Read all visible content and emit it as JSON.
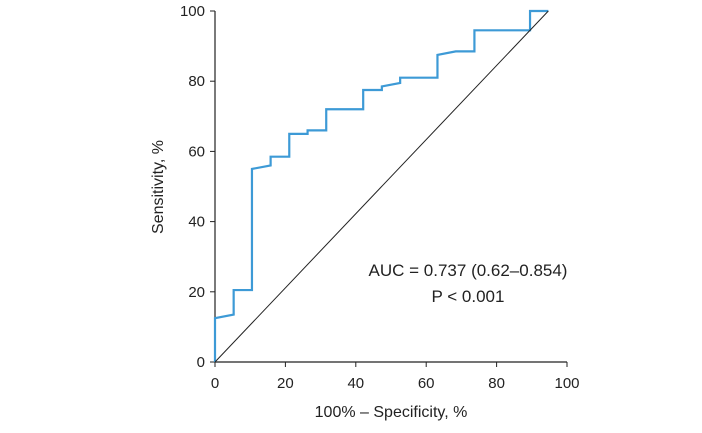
{
  "chart_data": {
    "type": "line",
    "title": "",
    "xlabel": "100% – Specificity, %",
    "ylabel": "Sensitivity, %",
    "xlim": [
      0,
      100
    ],
    "ylim": [
      0,
      100
    ],
    "xticks": [
      "0",
      "20",
      "40",
      "60",
      "80",
      "100"
    ],
    "yticks": [
      "0",
      "20",
      "40",
      "60",
      "80",
      "100"
    ],
    "grid": false,
    "legend": "none",
    "series": [
      {
        "x": [
          0,
          0,
          5.3,
          5.3,
          10.5,
          10.5,
          15.8,
          15.8,
          21.1,
          21.1,
          26.3,
          26.3,
          31.6,
          31.6,
          42.1,
          42.1,
          47.4,
          47.4,
          52.6,
          52.6,
          63.2,
          63.2,
          68.4,
          68.4,
          73.7,
          73.7,
          89.5,
          89.5,
          94.7
        ],
        "y": [
          0,
          12.5,
          13.5,
          20.5,
          20.5,
          55,
          56,
          58.5,
          58.5,
          65,
          65,
          66,
          66,
          72,
          72,
          77.5,
          77.5,
          78.5,
          79.5,
          81,
          81,
          87.5,
          88.5,
          88.5,
          88.5,
          94.5,
          94.5,
          100,
          100
        ],
        "color": "#3d9ad6"
      },
      {
        "x": [
          0,
          94.7
        ],
        "y": [
          0,
          100
        ],
        "color": "#222222"
      }
    ],
    "annotations": [
      {
        "text": "AUC = 0.737 (0.62–0.854)"
      },
      {
        "text": "P < 0.001"
      }
    ]
  }
}
